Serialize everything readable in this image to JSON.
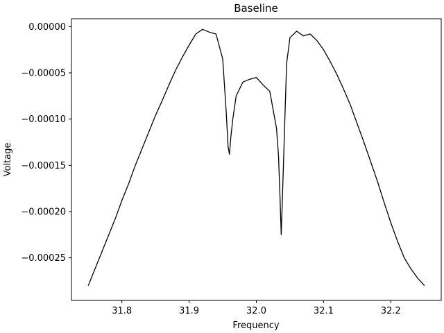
{
  "chart_data": {
    "type": "line",
    "title": "Baseline",
    "xlabel": "Frequency",
    "ylabel": "Voltage",
    "xlim": [
      31.725,
      32.275
    ],
    "ylim": [
      -0.000296,
      8.5e-06
    ],
    "grid": false,
    "legend": "none",
    "line_color": "#000000",
    "x_ticks": [
      31.8,
      31.9,
      32.0,
      32.1,
      32.2
    ],
    "x_tick_labels": [
      "31.8",
      "31.9",
      "32.0",
      "32.1",
      "32.2"
    ],
    "y_ticks": [
      0.0,
      -5e-05,
      -0.0001,
      -0.00015,
      -0.0002,
      -0.00025
    ],
    "y_tick_labels": [
      "0.00000",
      "−0.00005",
      "−0.00010",
      "−0.00015",
      "−0.00020",
      "−0.00025"
    ],
    "series": [
      {
        "x": [
          31.75,
          31.76,
          31.77,
          31.78,
          31.79,
          31.8,
          31.81,
          31.82,
          31.83,
          31.84,
          31.85,
          31.86,
          31.87,
          31.88,
          31.89,
          31.9,
          31.91,
          31.92,
          31.93,
          31.94,
          31.95,
          31.955,
          31.958,
          31.96,
          31.962,
          31.965,
          31.97,
          31.98,
          31.99,
          32.0,
          32.01,
          32.02,
          32.025,
          32.03,
          32.033,
          32.035,
          32.037,
          32.039,
          32.042,
          32.045,
          32.05,
          32.06,
          32.07,
          32.08,
          32.09,
          32.1,
          32.11,
          32.12,
          32.13,
          32.14,
          32.15,
          32.16,
          32.17,
          32.18,
          32.19,
          32.2,
          32.21,
          32.22,
          32.23,
          32.24,
          32.25
        ],
        "y": [
          -0.00028,
          -0.000262,
          -0.000244,
          -0.000226,
          -0.000208,
          -0.000188,
          -0.00017,
          -0.00015,
          -0.000132,
          -0.000114,
          -9.6e-05,
          -8e-05,
          -6.3e-05,
          -4.7e-05,
          -3.3e-05,
          -2e-05,
          -8e-06,
          -3e-06,
          -6e-06,
          -8e-06,
          -3.5e-05,
          -9e-05,
          -0.00013,
          -0.000138,
          -0.00012,
          -0.0001,
          -7.5e-05,
          -6e-05,
          -5.7e-05,
          -5.5e-05,
          -6.3e-05,
          -7e-05,
          -9e-05,
          -0.00011,
          -0.00014,
          -0.00018,
          -0.000225,
          -0.00018,
          -0.00011,
          -4e-05,
          -1.2e-05,
          -5e-06,
          -1e-05,
          -8e-06,
          -1.5e-05,
          -2.5e-05,
          -3.8e-05,
          -5.2e-05,
          -6.8e-05,
          -8.5e-05,
          -0.000105,
          -0.000125,
          -0.000146,
          -0.000167,
          -0.00019,
          -0.000212,
          -0.000232,
          -0.00025,
          -0.000262,
          -0.000272,
          -0.00028
        ]
      }
    ]
  }
}
